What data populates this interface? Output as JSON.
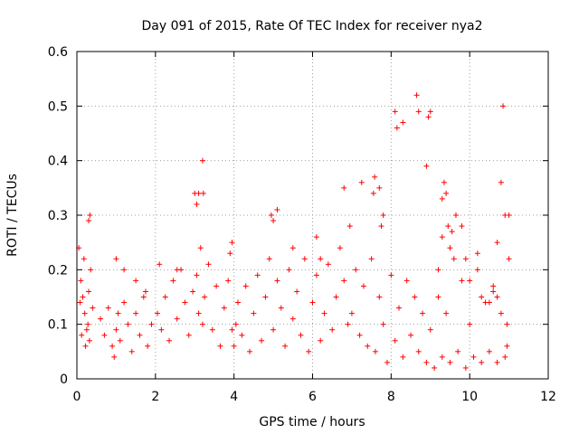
{
  "chart_data": {
    "type": "scatter",
    "title": "Day 091 of 2015, Rate Of TEC Index for receiver nya2",
    "xlabel": "GPS time / hours",
    "ylabel": "ROTI / TECUs",
    "xlim": [
      0,
      12
    ],
    "ylim": [
      0,
      0.6
    ],
    "xticks": [
      "0",
      "2",
      "4",
      "6",
      "8",
      "10",
      "12"
    ],
    "yticks": [
      "0",
      "0.1",
      "0.2",
      "0.3",
      "0.4",
      "0.5",
      "0.6"
    ],
    "grid": true,
    "marker": "+",
    "color": "#ff0000",
    "series": [
      {
        "name": "ROTI",
        "x": [
          0.05,
          0.1,
          0.15,
          0.2,
          0.25,
          0.3,
          0.35,
          0.4,
          0.12,
          0.18,
          0.22,
          0.28,
          0.32,
          0.08,
          0.3,
          0.33,
          0.6,
          0.7,
          0.8,
          0.9,
          1.0,
          1.05,
          1.1,
          1.2,
          1.3,
          1.4,
          1.5,
          1.6,
          1.7,
          1.8,
          1.9,
          1.0,
          1.2,
          1.5,
          1.75,
          0.95,
          2.05,
          2.15,
          2.25,
          2.35,
          2.45,
          2.55,
          2.65,
          2.75,
          2.85,
          2.95,
          3.05,
          3.1,
          3.15,
          3.2,
          3.25,
          3.35,
          3.45,
          3.55,
          3.65,
          3.75,
          3.85,
          3.95,
          2.1,
          2.55,
          3.0,
          3.05,
          3.1,
          3.2,
          3.22,
          3.9,
          3.95,
          4.0,
          4.05,
          4.1,
          4.2,
          4.3,
          4.4,
          4.5,
          4.6,
          4.7,
          4.8,
          4.9,
          5.0,
          5.1,
          5.2,
          5.3,
          5.4,
          5.5,
          5.6,
          5.7,
          5.8,
          5.9,
          6.0,
          6.1,
          6.2,
          6.3,
          6.4,
          6.5,
          6.6,
          6.7,
          6.8,
          6.9,
          4.95,
          5.0,
          5.1,
          5.5,
          6.1,
          6.2,
          6.8,
          6.95,
          7.0,
          7.1,
          7.2,
          7.3,
          7.4,
          7.5,
          7.6,
          7.7,
          7.8,
          7.9,
          8.0,
          8.1,
          8.2,
          8.3,
          8.4,
          8.5,
          8.6,
          8.7,
          8.8,
          8.9,
          9.0,
          7.25,
          7.55,
          7.58,
          7.7,
          7.75,
          7.8,
          8.1,
          8.15,
          8.3,
          8.65,
          8.7,
          8.9,
          8.95,
          9.0,
          9.1,
          9.2,
          9.3,
          9.4,
          9.5,
          9.6,
          9.7,
          9.8,
          9.9,
          10.0,
          10.1,
          10.2,
          10.3,
          10.4,
          10.5,
          10.6,
          10.7,
          10.8,
          10.9,
          11.0,
          9.2,
          9.3,
          9.35,
          9.4,
          9.45,
          9.5,
          9.55,
          9.65,
          9.9,
          10.0,
          10.3,
          10.5,
          10.6,
          10.7,
          10.8,
          10.85,
          10.9,
          10.95,
          11.0,
          9.3,
          9.8,
          10.2,
          10.7,
          10.95
        ],
        "y": [
          0.24,
          0.18,
          0.15,
          0.12,
          0.09,
          0.16,
          0.2,
          0.13,
          0.08,
          0.22,
          0.06,
          0.1,
          0.07,
          0.14,
          0.29,
          0.3,
          0.11,
          0.08,
          0.13,
          0.06,
          0.09,
          0.12,
          0.07,
          0.14,
          0.1,
          0.05,
          0.12,
          0.08,
          0.15,
          0.06,
          0.1,
          0.22,
          0.2,
          0.18,
          0.16,
          0.04,
          0.12,
          0.09,
          0.15,
          0.07,
          0.18,
          0.11,
          0.2,
          0.14,
          0.08,
          0.16,
          0.19,
          0.12,
          0.24,
          0.1,
          0.15,
          0.21,
          0.09,
          0.17,
          0.06,
          0.13,
          0.18,
          0.09,
          0.21,
          0.2,
          0.34,
          0.32,
          0.34,
          0.4,
          0.34,
          0.23,
          0.25,
          0.06,
          0.1,
          0.14,
          0.08,
          0.17,
          0.05,
          0.12,
          0.19,
          0.07,
          0.15,
          0.22,
          0.09,
          0.18,
          0.13,
          0.06,
          0.2,
          0.11,
          0.16,
          0.08,
          0.22,
          0.05,
          0.14,
          0.19,
          0.07,
          0.12,
          0.21,
          0.09,
          0.15,
          0.24,
          0.18,
          0.1,
          0.3,
          0.29,
          0.31,
          0.24,
          0.26,
          0.22,
          0.35,
          0.28,
          0.12,
          0.2,
          0.08,
          0.17,
          0.06,
          0.22,
          0.05,
          0.15,
          0.1,
          0.03,
          0.19,
          0.07,
          0.13,
          0.04,
          0.18,
          0.08,
          0.15,
          0.05,
          0.12,
          0.03,
          0.09,
          0.36,
          0.34,
          0.37,
          0.35,
          0.28,
          0.3,
          0.49,
          0.46,
          0.47,
          0.52,
          0.49,
          0.39,
          0.48,
          0.49,
          0.02,
          0.15,
          0.04,
          0.12,
          0.03,
          0.22,
          0.05,
          0.18,
          0.02,
          0.1,
          0.04,
          0.2,
          0.03,
          0.14,
          0.05,
          0.16,
          0.03,
          0.12,
          0.04,
          0.3,
          0.2,
          0.33,
          0.36,
          0.34,
          0.28,
          0.24,
          0.27,
          0.3,
          0.22,
          0.18,
          0.15,
          0.14,
          0.17,
          0.25,
          0.36,
          0.5,
          0.3,
          0.1,
          0.22,
          0.26,
          0.28,
          0.23,
          0.15,
          0.06
        ]
      }
    ]
  }
}
